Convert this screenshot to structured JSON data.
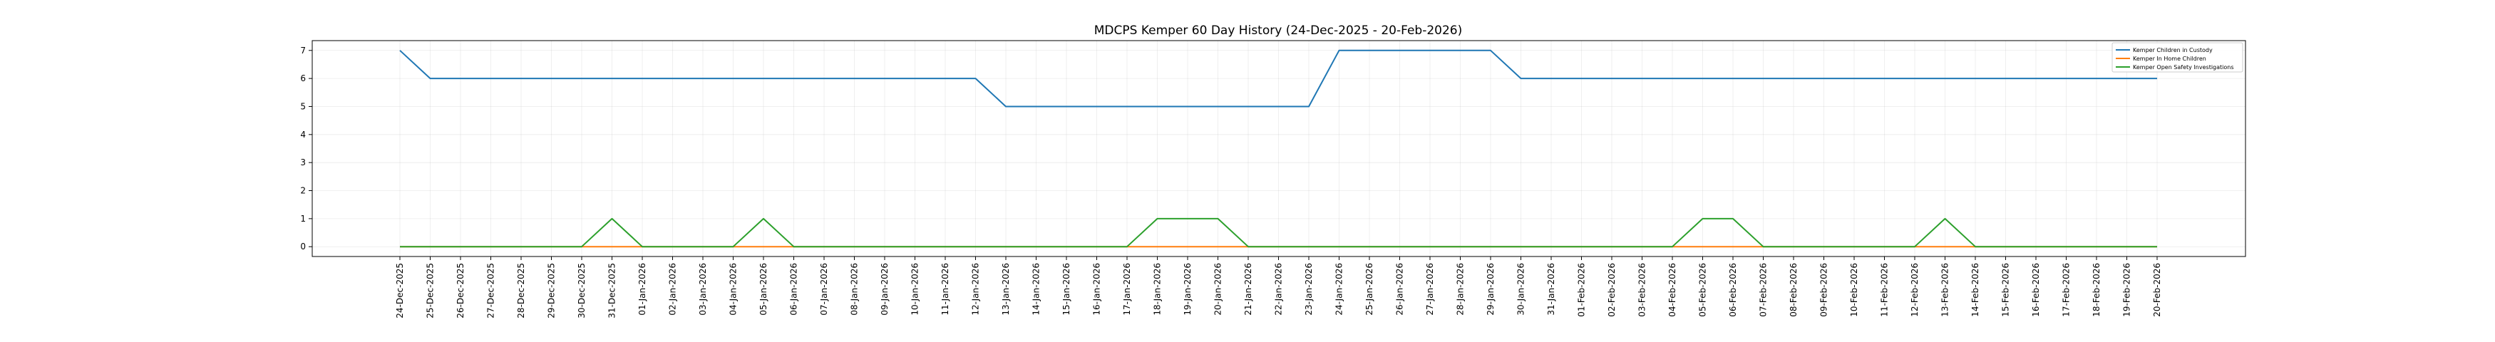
{
  "chart_data": {
    "type": "line",
    "title": "MDCPS Kemper 60 Day History (24-Dec-2025 - 20-Feb-2026)",
    "xlabel": "",
    "ylabel": "",
    "ylim": [
      -0.35,
      7.35
    ],
    "y_ticks": [
      "0",
      "1",
      "2",
      "3",
      "4",
      "5",
      "6",
      "7"
    ],
    "grid": true,
    "legend_position": "top-right",
    "x": [
      "24-Dec-2025",
      "25-Dec-2025",
      "26-Dec-2025",
      "27-Dec-2025",
      "28-Dec-2025",
      "29-Dec-2025",
      "30-Dec-2025",
      "31-Dec-2025",
      "01-Jan-2026",
      "02-Jan-2026",
      "03-Jan-2026",
      "04-Jan-2026",
      "05-Jan-2026",
      "06-Jan-2026",
      "07-Jan-2026",
      "08-Jan-2026",
      "09-Jan-2026",
      "10-Jan-2026",
      "11-Jan-2026",
      "12-Jan-2026",
      "13-Jan-2026",
      "14-Jan-2026",
      "15-Jan-2026",
      "16-Jan-2026",
      "17-Jan-2026",
      "18-Jan-2026",
      "19-Jan-2026",
      "20-Jan-2026",
      "21-Jan-2026",
      "22-Jan-2026",
      "23-Jan-2026",
      "24-Jan-2026",
      "25-Jan-2026",
      "26-Jan-2026",
      "27-Jan-2026",
      "28-Jan-2026",
      "29-Jan-2026",
      "30-Jan-2026",
      "31-Jan-2026",
      "01-Feb-2026",
      "02-Feb-2026",
      "03-Feb-2026",
      "04-Feb-2026",
      "05-Feb-2026",
      "06-Feb-2026",
      "07-Feb-2026",
      "08-Feb-2026",
      "09-Feb-2026",
      "10-Feb-2026",
      "11-Feb-2026",
      "12-Feb-2026",
      "13-Feb-2026",
      "14-Feb-2026",
      "15-Feb-2026",
      "16-Feb-2026",
      "17-Feb-2026",
      "18-Feb-2026",
      "19-Feb-2026",
      "20-Feb-2026"
    ],
    "series": [
      {
        "name": "Kemper Children in Custody",
        "color": "#1f77b4",
        "values": [
          7,
          6,
          6,
          6,
          6,
          6,
          6,
          6,
          6,
          6,
          6,
          6,
          6,
          6,
          6,
          6,
          6,
          6,
          6,
          6,
          5,
          5,
          5,
          5,
          5,
          5,
          5,
          5,
          5,
          5,
          5,
          7,
          7,
          7,
          7,
          7,
          7,
          6,
          6,
          6,
          6,
          6,
          6,
          6,
          6,
          6,
          6,
          6,
          6,
          6,
          6,
          6,
          6,
          6,
          6,
          6,
          6,
          6,
          6
        ]
      },
      {
        "name": "Kemper In Home Children",
        "color": "#ff7f0e",
        "values": [
          0,
          0,
          0,
          0,
          0,
          0,
          0,
          0,
          0,
          0,
          0,
          0,
          0,
          0,
          0,
          0,
          0,
          0,
          0,
          0,
          0,
          0,
          0,
          0,
          0,
          0,
          0,
          0,
          0,
          0,
          0,
          0,
          0,
          0,
          0,
          0,
          0,
          0,
          0,
          0,
          0,
          0,
          0,
          0,
          0,
          0,
          0,
          0,
          0,
          0,
          0,
          0,
          0,
          0,
          0,
          0,
          0,
          0,
          0
        ]
      },
      {
        "name": "Kemper Open Safety Investigations",
        "color": "#2ca02c",
        "values": [
          0,
          0,
          0,
          0,
          0,
          0,
          0,
          1,
          0,
          0,
          0,
          0,
          1,
          0,
          0,
          0,
          0,
          0,
          0,
          0,
          0,
          0,
          0,
          0,
          0,
          1,
          1,
          1,
          0,
          0,
          0,
          0,
          0,
          0,
          0,
          0,
          0,
          0,
          0,
          0,
          0,
          0,
          0,
          1,
          1,
          0,
          0,
          0,
          0,
          0,
          0,
          1,
          0,
          0,
          0,
          0,
          0,
          0,
          0
        ]
      }
    ]
  }
}
